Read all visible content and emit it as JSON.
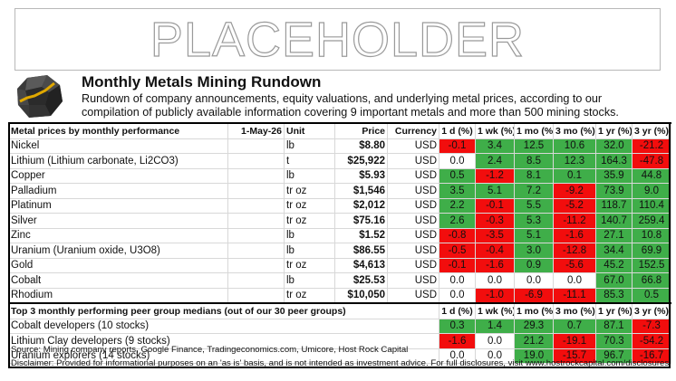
{
  "placeholder": "PLACEHOLDER",
  "title": "Monthly Metals Mining Rundown",
  "subtitle": "Rundown of company announcements, equity valuations, and underlying metal prices, according to our compilation of publicly available information covering 9 important metals and more than 500 mining stocks.",
  "colors": {
    "green": "#3fae49",
    "red": "#f20d0d",
    "white": "#ffffff"
  },
  "metals_table": {
    "headers": {
      "name": "Metal prices by monthly performance",
      "date": "1-May-26",
      "unit": "Unit",
      "price": "Price",
      "currency": "Currency",
      "d1": "1 d (%)",
      "wk1": "1 wk (%)",
      "mo1": "1 mo (%)",
      "mo3": "3 mo (%)",
      "yr1": "1 yr (%)",
      "yr3": "3 yr (%)"
    },
    "rows": [
      {
        "name": "Nickel",
        "unit": "lb",
        "price": "$8.80",
        "currency": "USD",
        "cells": [
          "-0.1",
          "3.4",
          "12.5",
          "10.6",
          "32.0",
          "-21.2"
        ],
        "colors": [
          "red",
          "green",
          "green",
          "green",
          "green",
          "red"
        ]
      },
      {
        "name": "Lithium (Lithium carbonate, Li2CO3)",
        "unit": "t",
        "price": "$25,922",
        "currency": "USD",
        "cells": [
          "0.0",
          "2.4",
          "8.5",
          "12.3",
          "164.3",
          "-47.8"
        ],
        "colors": [
          "white",
          "green",
          "green",
          "green",
          "green",
          "red"
        ]
      },
      {
        "name": "Copper",
        "unit": "lb",
        "price": "$5.93",
        "currency": "USD",
        "cells": [
          "0.5",
          "-1.2",
          "8.1",
          "0.1",
          "35.9",
          "44.8"
        ],
        "colors": [
          "green",
          "red",
          "green",
          "green",
          "green",
          "green"
        ]
      },
      {
        "name": "Palladium",
        "unit": "tr oz",
        "price": "$1,546",
        "currency": "USD",
        "cells": [
          "3.5",
          "5.1",
          "7.2",
          "-9.2",
          "73.9",
          "9.0"
        ],
        "colors": [
          "green",
          "green",
          "green",
          "red",
          "green",
          "green"
        ]
      },
      {
        "name": "Platinum",
        "unit": "tr oz",
        "price": "$2,012",
        "currency": "USD",
        "cells": [
          "2.2",
          "-0.1",
          "5.5",
          "-5.2",
          "118.7",
          "110.4"
        ],
        "colors": [
          "green",
          "red",
          "green",
          "red",
          "green",
          "green"
        ]
      },
      {
        "name": "Silver",
        "unit": "tr oz",
        "price": "$75.16",
        "currency": "USD",
        "cells": [
          "2.6",
          "-0.3",
          "5.3",
          "-11.2",
          "140.7",
          "259.4"
        ],
        "colors": [
          "green",
          "red",
          "green",
          "red",
          "green",
          "green"
        ]
      },
      {
        "name": "Zinc",
        "unit": "lb",
        "price": "$1.52",
        "currency": "USD",
        "cells": [
          "-0.8",
          "-3.5",
          "5.1",
          "-1.6",
          "27.1",
          "10.8"
        ],
        "colors": [
          "red",
          "red",
          "green",
          "red",
          "green",
          "green"
        ]
      },
      {
        "name": "Uranium (Uranium oxide, U3O8)",
        "unit": "lb",
        "price": "$86.55",
        "currency": "USD",
        "cells": [
          "-0.5",
          "-0.4",
          "3.0",
          "-12.8",
          "34.4",
          "69.9"
        ],
        "colors": [
          "red",
          "red",
          "green",
          "red",
          "green",
          "green"
        ]
      },
      {
        "name": "Gold",
        "unit": "tr oz",
        "price": "$4,613",
        "currency": "USD",
        "cells": [
          "-0.1",
          "-1.6",
          "0.9",
          "-5.6",
          "45.2",
          "152.5"
        ],
        "colors": [
          "red",
          "red",
          "green",
          "red",
          "green",
          "green"
        ]
      },
      {
        "name": "Cobalt",
        "unit": "lb",
        "price": "$25.53",
        "currency": "USD",
        "cells": [
          "0.0",
          "0.0",
          "0.0",
          "0.0",
          "67.0",
          "66.8"
        ],
        "colors": [
          "white",
          "white",
          "white",
          "white",
          "green",
          "green"
        ]
      },
      {
        "name": "Rhodium",
        "unit": "tr oz",
        "price": "$10,050",
        "currency": "USD",
        "cells": [
          "0.0",
          "-1.0",
          "-6.9",
          "-11.1",
          "85.3",
          "0.5"
        ],
        "colors": [
          "white",
          "red",
          "red",
          "red",
          "green",
          "green"
        ]
      }
    ]
  },
  "peer_table": {
    "header": "Top 3 monthly performing peer group medians (out of our 30 peer groups)",
    "cols": [
      "1 d (%)",
      "1 wk (%)",
      "1 mo (%)",
      "3 mo (%)",
      "1 yr (%)",
      "3 yr (%)"
    ],
    "rows": [
      {
        "name": "Cobalt developers (10 stocks)",
        "cells": [
          "0.3",
          "1.4",
          "29.3",
          "0.7",
          "87.1",
          "-7.3"
        ],
        "colors": [
          "green",
          "green",
          "green",
          "green",
          "green",
          "red"
        ]
      },
      {
        "name": "Lithium Clay developers (9 stocks)",
        "cells": [
          "-1.6",
          "0.0",
          "21.2",
          "-19.1",
          "70.3",
          "-54.2"
        ],
        "colors": [
          "red",
          "white",
          "green",
          "red",
          "green",
          "red"
        ]
      },
      {
        "name": "Uranium explorers (14 stocks)",
        "cells": [
          "0.0",
          "0.0",
          "19.0",
          "-15.7",
          "96.7",
          "-16.7"
        ],
        "colors": [
          "white",
          "white",
          "green",
          "red",
          "green",
          "red"
        ]
      }
    ]
  },
  "source": "Source: Mining company reports, Google Finance, Tradingeconomics.com, Umicore, Host Rock Capital",
  "disclaimer": "Disclaimer: Provided for informational purposes on an 'as is' basis, and is not intended as investment advice. For full disclosures, visit www.hostrockcapital.com/disclosures."
}
